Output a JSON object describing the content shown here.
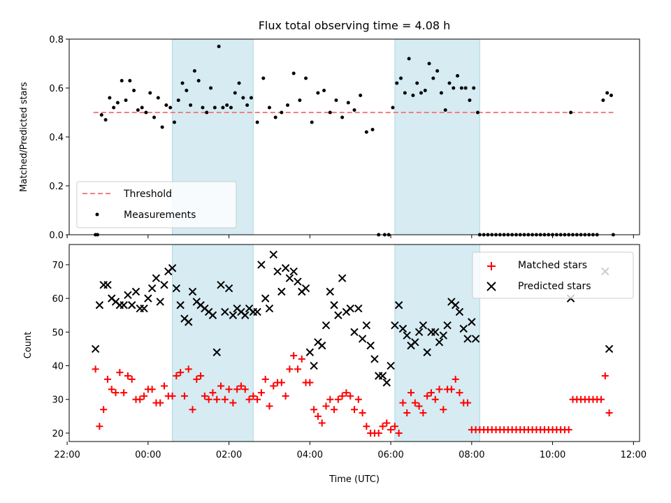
{
  "chart_data": [
    {
      "type": "scatter",
      "title": "Flux total observing time = 4.08 h",
      "xlabel": "",
      "ylabel": "Matched/Predicted stars",
      "xlim": [
        -1.95,
        12.15
      ],
      "ylim": [
        0,
        0.8
      ],
      "yticks": [
        0,
        0.2,
        0.4,
        0.6,
        0.8
      ],
      "ytick_labels": [
        "0.0",
        "0.2",
        "0.4",
        "0.6",
        "0.8"
      ],
      "grid": false,
      "legend": "lower-left",
      "threshold": {
        "name": "Threshold",
        "value": 0.5,
        "x_range": [
          -1.35,
          11.5
        ],
        "color": "#f08080"
      },
      "shaded_intervals": [
        [
          0.6,
          2.6
        ],
        [
          6.1,
          8.2
        ]
      ],
      "series": [
        {
          "name": "Measurements",
          "color": "#000000",
          "x": [
            -1.3,
            -1.25,
            -1.15,
            -1.05,
            -0.95,
            -0.85,
            -0.75,
            -0.65,
            -0.55,
            -0.45,
            -0.35,
            -0.25,
            -0.15,
            -0.05,
            0.05,
            0.15,
            0.25,
            0.35,
            0.45,
            0.55,
            0.65,
            0.75,
            0.85,
            0.95,
            1.05,
            1.15,
            1.25,
            1.35,
            1.45,
            1.55,
            1.65,
            1.75,
            1.85,
            1.95,
            2.05,
            2.15,
            2.25,
            2.35,
            2.45,
            2.55,
            2.7,
            2.85,
            3.0,
            3.15,
            3.3,
            3.45,
            3.6,
            3.75,
            3.9,
            4.05,
            4.2,
            4.35,
            4.5,
            4.65,
            4.8,
            4.95,
            5.1,
            5.25,
            5.4,
            5.55,
            5.7,
            5.85,
            5.95,
            6.05,
            6.15,
            6.25,
            6.35,
            6.45,
            6.55,
            6.65,
            6.75,
            6.85,
            6.95,
            7.05,
            7.15,
            7.25,
            7.35,
            7.45,
            7.55,
            7.65,
            7.75,
            7.85,
            7.95,
            8.05,
            8.15,
            10.45,
            11.25,
            11.35,
            11.45
          ],
          "y": [
            0.0,
            0.0,
            0.49,
            0.47,
            0.56,
            0.52,
            0.54,
            0.63,
            0.55,
            0.63,
            0.59,
            0.51,
            0.52,
            0.5,
            0.58,
            0.48,
            0.56,
            0.44,
            0.53,
            0.52,
            0.46,
            0.55,
            0.62,
            0.59,
            0.53,
            0.67,
            0.63,
            0.52,
            0.5,
            0.6,
            0.52,
            0.77,
            0.52,
            0.53,
            0.52,
            0.58,
            0.62,
            0.56,
            0.53,
            0.56,
            0.46,
            0.64,
            0.52,
            0.48,
            0.5,
            0.53,
            0.66,
            0.55,
            0.64,
            0.46,
            0.58,
            0.59,
            0.5,
            0.55,
            0.48,
            0.54,
            0.51,
            0.57,
            0.42,
            0.43,
            0.0,
            0.0,
            0.0,
            0.52,
            0.62,
            0.64,
            0.58,
            0.72,
            0.57,
            0.62,
            0.58,
            0.59,
            0.7,
            0.64,
            0.67,
            0.58,
            0.51,
            0.62,
            0.6,
            0.65,
            0.6,
            0.6,
            0.55,
            0.6,
            0.5,
            0.5,
            0.55,
            0.58,
            0.57
          ]
        }
      ]
    },
    {
      "type": "scatter",
      "title": "",
      "xlabel": "Time (UTC)",
      "ylabel": "Count",
      "xlim": [
        -1.95,
        12.15
      ],
      "ylim": [
        17.5,
        76.0
      ],
      "yticks": [
        20,
        30,
        40,
        50,
        60,
        70
      ],
      "ytick_labels": [
        "20",
        "30",
        "40",
        "50",
        "60",
        "70"
      ],
      "xticks": [
        -2,
        0,
        2,
        4,
        6,
        8,
        10,
        12
      ],
      "xtick_labels": [
        "22:00",
        "00:00",
        "02:00",
        "04:00",
        "06:00",
        "08:00",
        "10:00",
        "12:00"
      ],
      "grid": false,
      "legend": "top-right",
      "shaded_intervals": [
        [
          0.6,
          2.6
        ],
        [
          6.1,
          8.2
        ]
      ],
      "series": [
        {
          "name": "Matched stars",
          "marker": "+",
          "color": "#ff0000",
          "x": [
            -1.3,
            -1.2,
            -1.1,
            -1.0,
            -0.9,
            -0.8,
            -0.7,
            -0.6,
            -0.5,
            -0.4,
            -0.3,
            -0.2,
            -0.1,
            0.0,
            0.1,
            0.2,
            0.3,
            0.4,
            0.5,
            0.6,
            0.7,
            0.8,
            0.9,
            1.0,
            1.1,
            1.2,
            1.3,
            1.4,
            1.5,
            1.6,
            1.7,
            1.8,
            1.9,
            2.0,
            2.1,
            2.2,
            2.3,
            2.4,
            2.5,
            2.6,
            2.7,
            2.8,
            2.9,
            3.0,
            3.1,
            3.2,
            3.3,
            3.4,
            3.5,
            3.6,
            3.7,
            3.8,
            3.9,
            4.0,
            4.1,
            4.2,
            4.3,
            4.4,
            4.5,
            4.6,
            4.7,
            4.8,
            4.9,
            5.0,
            5.1,
            5.2,
            5.3,
            5.4,
            5.5,
            5.6,
            5.7,
            5.8,
            5.9,
            6.0,
            6.1,
            6.2,
            6.3,
            6.4,
            6.5,
            6.6,
            6.7,
            6.8,
            6.9,
            7.0,
            7.1,
            7.2,
            7.3,
            7.4,
            7.5,
            7.6,
            7.7,
            7.8,
            7.9,
            8.0,
            8.1,
            10.5,
            10.6,
            10.7,
            10.8,
            10.9,
            11.0,
            11.1,
            11.2,
            11.3,
            11.4
          ],
          "y": [
            39,
            22,
            27,
            36,
            33,
            32,
            38,
            32,
            37,
            36,
            30,
            30,
            31,
            33,
            33,
            29,
            29,
            34,
            31,
            31,
            37,
            38,
            31,
            39,
            27,
            36,
            37,
            31,
            30,
            32,
            30,
            34,
            30,
            33,
            29,
            33,
            34,
            33,
            30,
            31,
            30,
            32,
            36,
            28,
            34,
            35,
            35,
            31,
            39,
            43,
            39,
            42,
            35,
            35,
            27,
            25,
            23,
            28,
            30,
            27,
            30,
            31,
            32,
            31,
            27,
            30,
            26,
            22,
            20,
            20,
            20,
            22,
            23,
            21,
            22,
            20,
            29,
            26,
            32,
            29,
            28,
            26,
            31,
            32,
            30,
            33,
            27,
            33,
            33,
            36,
            32,
            29,
            29,
            21,
            21,
            30,
            30,
            30,
            30,
            30,
            30,
            30,
            30,
            37,
            26
          ]
        },
        {
          "name": "Predicted stars",
          "marker": "x",
          "color": "#000000",
          "x": [
            -1.3,
            -1.2,
            -1.1,
            -1.0,
            -0.9,
            -0.8,
            -0.7,
            -0.6,
            -0.5,
            -0.4,
            -0.3,
            -0.2,
            -0.1,
            0.0,
            0.1,
            0.2,
            0.3,
            0.4,
            0.5,
            0.6,
            0.7,
            0.8,
            0.9,
            1.0,
            1.1,
            1.2,
            1.3,
            1.4,
            1.5,
            1.6,
            1.7,
            1.8,
            1.9,
            2.0,
            2.1,
            2.2,
            2.3,
            2.4,
            2.5,
            2.6,
            2.7,
            2.8,
            2.9,
            3.0,
            3.1,
            3.2,
            3.3,
            3.4,
            3.5,
            3.6,
            3.7,
            3.8,
            3.9,
            4.0,
            4.1,
            4.2,
            4.3,
            4.4,
            4.5,
            4.6,
            4.7,
            4.8,
            4.9,
            5.0,
            5.1,
            5.2,
            5.3,
            5.4,
            5.5,
            5.6,
            5.7,
            5.8,
            5.9,
            6.0,
            6.1,
            6.2,
            6.3,
            6.4,
            6.5,
            6.6,
            6.7,
            6.8,
            6.9,
            7.0,
            7.1,
            7.2,
            7.3,
            7.4,
            7.5,
            7.6,
            7.7,
            7.8,
            7.9,
            8.0,
            8.1,
            10.45,
            11.3,
            11.4
          ],
          "y": [
            45,
            58,
            64,
            64,
            60,
            59,
            58,
            58,
            61,
            58,
            62,
            57,
            57,
            60,
            63,
            66,
            59,
            64,
            68,
            69,
            63,
            58,
            54,
            53,
            62,
            59,
            58,
            57,
            56,
            55,
            44,
            64,
            56,
            63,
            55,
            57,
            56,
            55,
            57,
            56,
            56,
            70,
            60,
            57,
            73,
            68,
            62,
            69,
            66,
            68,
            65,
            62,
            63,
            44,
            40,
            47,
            46,
            52,
            62,
            58,
            55,
            66,
            56,
            57,
            50,
            57,
            48,
            52,
            46,
            42,
            37,
            37,
            35,
            40,
            52,
            58,
            51,
            49,
            46,
            47,
            50,
            52,
            44,
            50,
            50,
            47,
            49,
            52,
            59,
            58,
            56,
            51,
            48,
            53,
            48,
            60,
            68,
            45
          ]
        }
      ]
    }
  ]
}
